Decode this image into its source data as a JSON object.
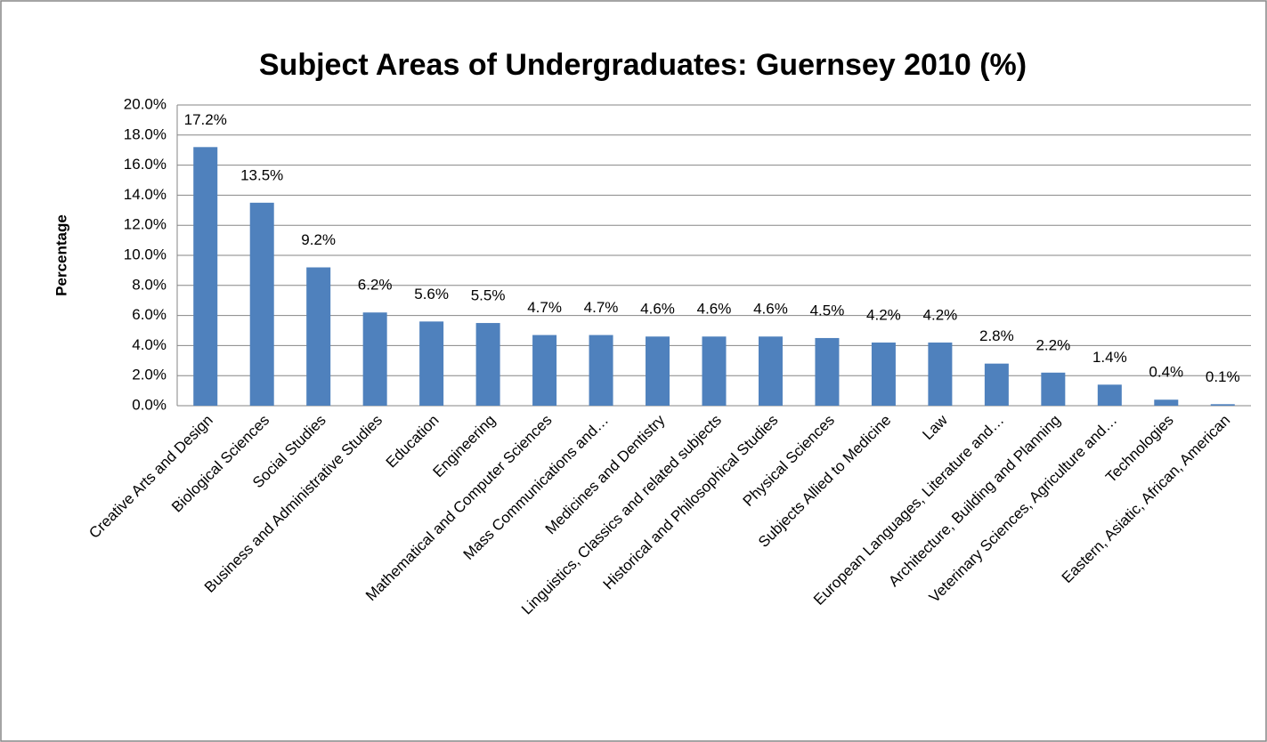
{
  "chart_data": {
    "type": "bar",
    "title": "Subject Areas of Undergraduates: Guernsey 2010 (%)",
    "y_label": "Percentage",
    "categories": [
      "Creative Arts and Design",
      "Biological Sciences",
      "Social Studies",
      "Business and Administrative Studies",
      "Education",
      "Engineering",
      "Mathematical and Computer Sciences",
      "Mass Communications and…",
      "Medicines and Dentistry",
      "Linguistics, Classics and related subjects",
      "Historical and Philosophical Studies",
      "Physical Sciences",
      "Subjects Allied to Medicine",
      "Law",
      "European Languages, Literature and…",
      "Architecture, Building and Planning",
      "Veterinary Sciences, Agriculture and…",
      "Technologies",
      "Eastern, Asiatic, African, American"
    ],
    "values": [
      17.2,
      13.5,
      9.2,
      6.2,
      5.6,
      5.5,
      4.7,
      4.7,
      4.6,
      4.6,
      4.6,
      4.5,
      4.2,
      4.2,
      2.8,
      2.2,
      1.4,
      0.4,
      0.1
    ],
    "value_labels": [
      "17.2%",
      "13.5%",
      "9.2%",
      "6.2%",
      "5.6%",
      "5.5%",
      "4.7%",
      "4.7%",
      "4.6%",
      "4.6%",
      "4.6%",
      "4.5%",
      "4.2%",
      "4.2%",
      "2.8%",
      "2.2%",
      "1.4%",
      "0.4%",
      "0.1%"
    ],
    "color": "#4f81bd",
    "ylim": [
      0,
      20
    ],
    "yticks": [
      {
        "value": 0,
        "label": "0.0%"
      },
      {
        "value": 2,
        "label": "2.0%"
      },
      {
        "value": 4,
        "label": "4.0%"
      },
      {
        "value": 6,
        "label": "6.0%"
      },
      {
        "value": 8,
        "label": "8.0%"
      },
      {
        "value": 10,
        "label": "10.0%"
      },
      {
        "value": 12,
        "label": "12.0%"
      },
      {
        "value": 14,
        "label": "14.0%"
      },
      {
        "value": 16,
        "label": "16.0%"
      },
      {
        "value": 18,
        "label": "18.0%"
      },
      {
        "value": 20,
        "label": "20.0%"
      }
    ],
    "grid": true
  }
}
